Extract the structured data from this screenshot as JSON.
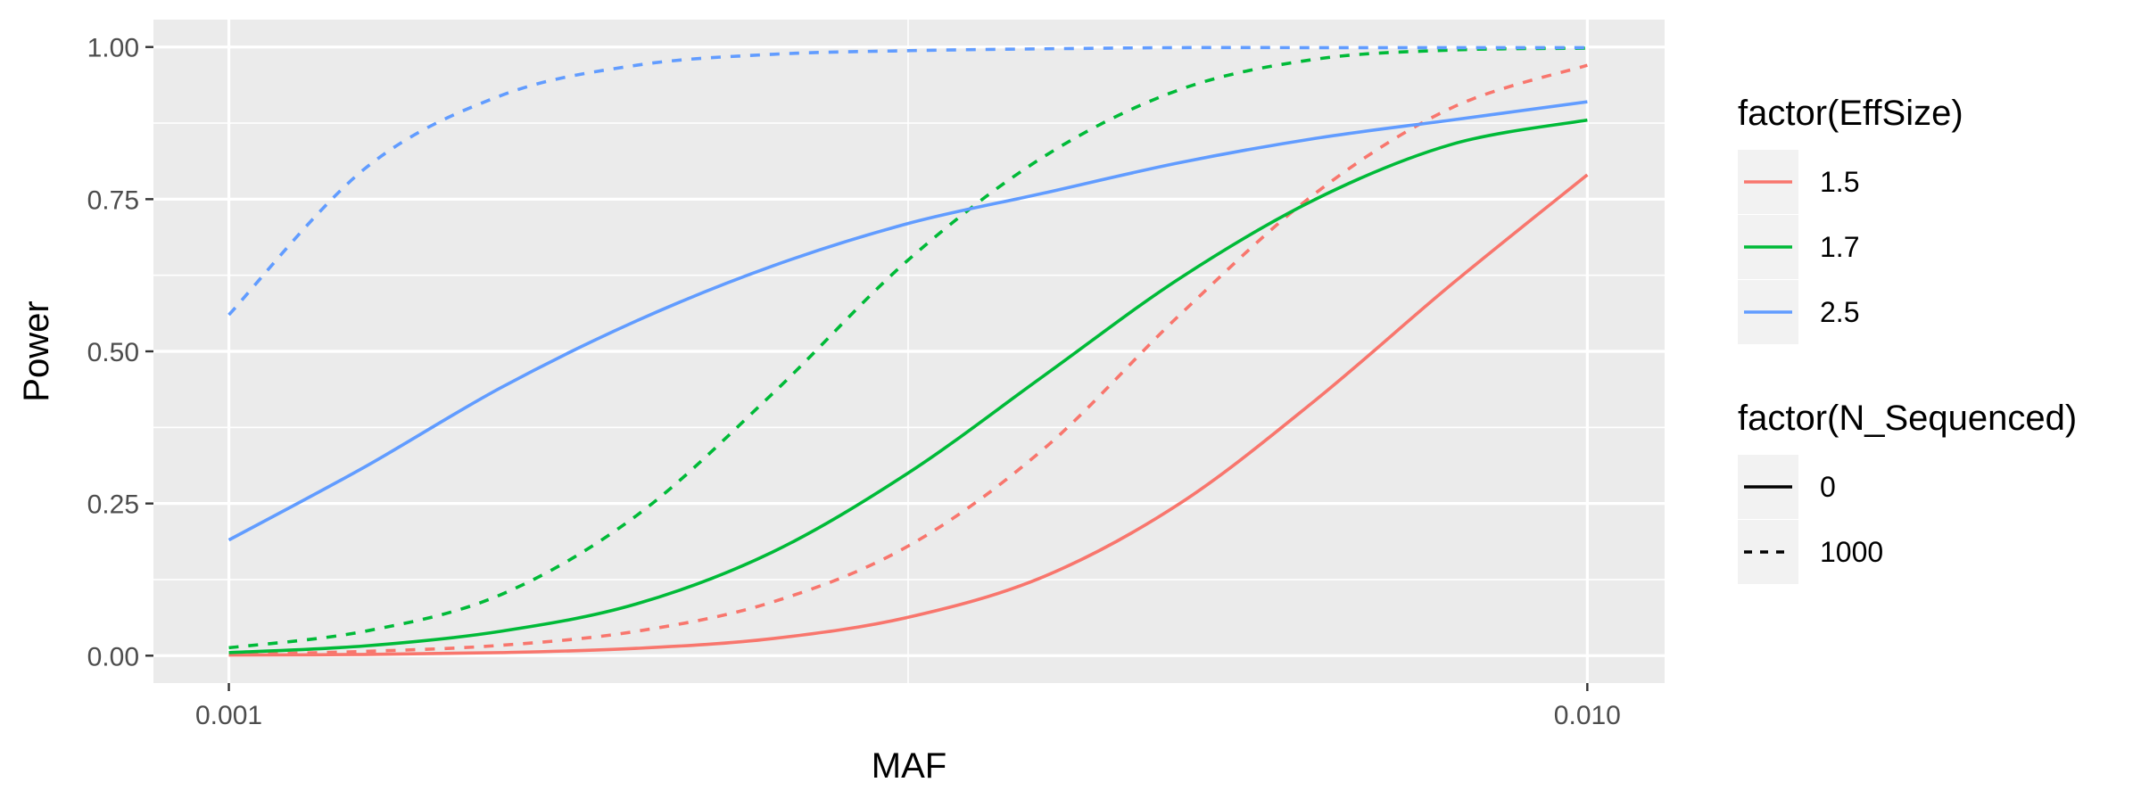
{
  "chart_data": {
    "type": "line",
    "title": "",
    "xlabel": "MAF",
    "ylabel": "Power",
    "x_scale": "log10",
    "xlim": [
      0.00088,
      0.0114
    ],
    "ylim": [
      -0.045,
      1.045
    ],
    "x_ticks": [
      {
        "value": 0.001,
        "label": "0.001"
      },
      {
        "value": 0.01,
        "label": "0.010"
      }
    ],
    "x_minor_ticks": [
      0.0031623
    ],
    "y_ticks": [
      {
        "value": 0.0,
        "label": "0.00"
      },
      {
        "value": 0.25,
        "label": "0.25"
      },
      {
        "value": 0.5,
        "label": "0.50"
      },
      {
        "value": 0.75,
        "label": "0.75"
      },
      {
        "value": 1.0,
        "label": "1.00"
      }
    ],
    "y_minor_ticks": [
      0.125,
      0.375,
      0.625,
      0.875
    ],
    "grid": true,
    "panel_background": "#ebebeb",
    "grid_color": "#ffffff",
    "legend_placement": "right",
    "x": [
      0.001,
      0.0012589,
      0.0015849,
      0.0019953,
      0.0025119,
      0.0031623,
      0.0039811,
      0.0050119,
      0.0063096,
      0.0079433,
      0.01
    ],
    "series": [
      {
        "effsize": "1.5",
        "nseq": "0",
        "color": "#f8766d",
        "linetype": "solid",
        "values": [
          0.001,
          0.002,
          0.005,
          0.012,
          0.028,
          0.063,
          0.13,
          0.25,
          0.42,
          0.61,
          0.79
        ]
      },
      {
        "effsize": "1.5",
        "nseq": "1000",
        "color": "#f8766d",
        "linetype": "dashed",
        "values": [
          0.002,
          0.007,
          0.017,
          0.04,
          0.088,
          0.18,
          0.34,
          0.56,
          0.76,
          0.9,
          0.97
        ]
      },
      {
        "effsize": "1.7",
        "nseq": "0",
        "color": "#00ba38",
        "linetype": "solid",
        "values": [
          0.005,
          0.016,
          0.04,
          0.085,
          0.17,
          0.3,
          0.46,
          0.62,
          0.75,
          0.84,
          0.88
        ]
      },
      {
        "effsize": "1.7",
        "nseq": "1000",
        "color": "#00ba38",
        "linetype": "dashed",
        "values": [
          0.013,
          0.04,
          0.1,
          0.23,
          0.43,
          0.65,
          0.82,
          0.93,
          0.98,
          0.995,
          0.998
        ]
      },
      {
        "effsize": "2.5",
        "nseq": "0",
        "color": "#619cff",
        "linetype": "solid",
        "values": [
          0.19,
          0.31,
          0.44,
          0.55,
          0.64,
          0.71,
          0.76,
          0.81,
          0.85,
          0.88,
          0.91
        ]
      },
      {
        "effsize": "2.5",
        "nseq": "1000",
        "color": "#619cff",
        "linetype": "dashed",
        "values": [
          0.56,
          0.8,
          0.92,
          0.97,
          0.988,
          0.994,
          0.997,
          0.999,
          0.999,
          0.999,
          0.999
        ]
      }
    ],
    "legends": [
      {
        "title": "factor(EffSize)",
        "kind": "color",
        "entries": [
          {
            "label": "1.5",
            "color": "#f8766d",
            "linetype": "solid"
          },
          {
            "label": "1.7",
            "color": "#00ba38",
            "linetype": "solid"
          },
          {
            "label": "2.5",
            "color": "#619cff",
            "linetype": "solid"
          }
        ]
      },
      {
        "title": "factor(N_Sequenced)",
        "kind": "linetype",
        "entries": [
          {
            "label": "0",
            "color": "#000000",
            "linetype": "solid"
          },
          {
            "label": "1000",
            "color": "#000000",
            "linetype": "dashed"
          }
        ]
      }
    ]
  }
}
